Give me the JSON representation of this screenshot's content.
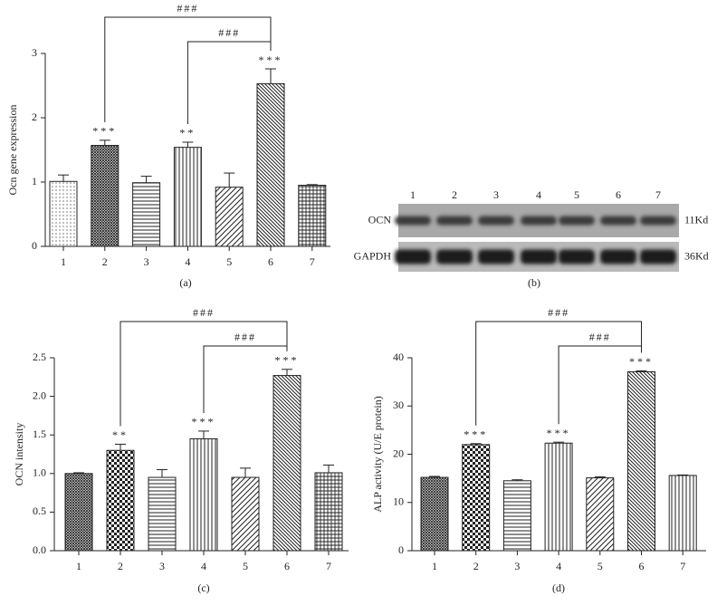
{
  "chart_data": [
    {
      "type": "bar",
      "caption": "(a)",
      "y_label": "Ocn gene expression",
      "categories": [
        "1",
        "2",
        "3",
        "4",
        "5",
        "6",
        "7"
      ],
      "values": [
        1.01,
        1.57,
        0.99,
        1.54,
        0.92,
        2.53,
        0.95
      ],
      "errors": [
        0.1,
        0.08,
        0.1,
        0.08,
        0.22,
        0.23,
        0.01
      ],
      "patterns": [
        "dots",
        "crosshatch",
        "hlines",
        "vlines",
        "diag",
        "diag2",
        "grid"
      ],
      "significance": [
        null,
        "***",
        null,
        "**",
        null,
        "***",
        null
      ],
      "comparisons": [
        {
          "from": 1,
          "to": 5,
          "label": "###"
        },
        {
          "from": 3,
          "to": 5,
          "label": "###"
        }
      ],
      "ylim": [
        0,
        3
      ],
      "yticks": [
        0,
        1,
        2,
        3
      ],
      "color": "#222222"
    },
    {
      "type": "bar",
      "caption": "(c)",
      "y_label": "OCN intensity",
      "categories": [
        "1",
        "2",
        "3",
        "4",
        "5",
        "6",
        "7"
      ],
      "values": [
        1.0,
        1.3,
        0.95,
        1.45,
        0.95,
        2.27,
        1.01
      ],
      "errors": [
        0.01,
        0.08,
        0.1,
        0.1,
        0.12,
        0.08,
        0.1
      ],
      "patterns": [
        "crosshatch",
        "checker",
        "hlines",
        "vlines",
        "diag",
        "diag2",
        "grid"
      ],
      "significance": [
        null,
        "**",
        null,
        "***",
        null,
        "***",
        null
      ],
      "comparisons": [
        {
          "from": 1,
          "to": 5,
          "label": "###"
        },
        {
          "from": 3,
          "to": 5,
          "label": "###"
        }
      ],
      "ylim": [
        0,
        2.5
      ],
      "yticks": [
        {
          "value": 0,
          "label": "0.0"
        },
        0.5,
        {
          "value": 1,
          "label": "1.0"
        },
        1.5,
        {
          "value": 2,
          "label": "2.0"
        },
        2.5
      ],
      "color": "#222222"
    },
    {
      "type": "bar",
      "caption": "(d)",
      "y_label": "ALP activity (U/E protein)",
      "categories": [
        "1",
        "2",
        "3",
        "4",
        "5",
        "6",
        "7"
      ],
      "values": [
        15.2,
        22.0,
        14.5,
        22.3,
        15.1,
        37.1,
        15.6
      ],
      "errors": [
        0.2,
        0.2,
        0.2,
        0.2,
        0.2,
        0.2,
        0.1
      ],
      "patterns": [
        "crosshatch",
        "checker",
        "hlines",
        "vlines",
        "diag",
        "diag2",
        "vlines"
      ],
      "significance": [
        null,
        "***",
        null,
        "***",
        null,
        "***",
        null
      ],
      "comparisons": [
        {
          "from": 1,
          "to": 5,
          "label": "###"
        },
        {
          "from": 3,
          "to": 5,
          "label": "###"
        }
      ],
      "ylim": [
        0,
        40
      ],
      "yticks": [
        0,
        10,
        20,
        30,
        40
      ],
      "color": "#222222"
    }
  ],
  "blot": {
    "lanes": [
      "1",
      "2",
      "3",
      "4",
      "5",
      "6",
      "7"
    ],
    "rows": [
      {
        "label": "OCN",
        "size": "11Kd"
      },
      {
        "label": "GAPDH",
        "size": "36Kd"
      }
    ],
    "caption": "(b)"
  }
}
